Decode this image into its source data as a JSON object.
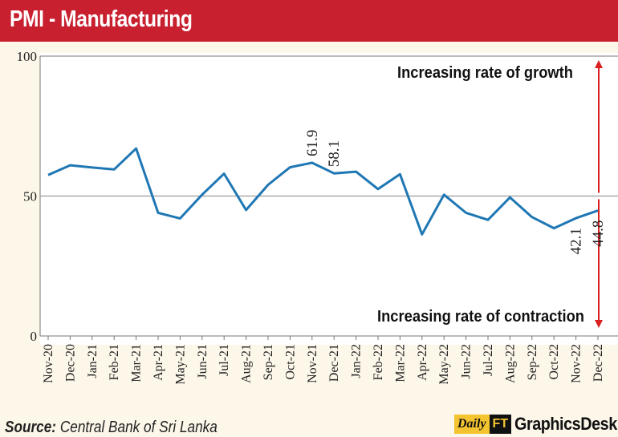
{
  "header": {
    "title": "PMI - Manufacturing"
  },
  "footer": {
    "source_label": "Source:",
    "source_text": "Central Bank of Sri Lanka"
  },
  "brand": {
    "daily": "Daily",
    "ft": "FT",
    "desk": "GraphicsDesk"
  },
  "colors": {
    "header": "#c8202f",
    "line": "#1f77b4",
    "arrow": "#d7201f"
  },
  "chart_data": {
    "type": "line",
    "title": "PMI - Manufacturing",
    "categories": [
      "Nov-20",
      "Dec-20",
      "Jan-21",
      "Feb-21",
      "Mar-21",
      "Apr-21",
      "May-21",
      "Jun-21",
      "Jul-21",
      "Aug-21",
      "Sep-21",
      "Oct-21",
      "Nov-21",
      "Dec-21",
      "Jan-22",
      "Feb-22",
      "Mar-22",
      "Apr-22",
      "May-22",
      "Jun-22",
      "Jul-22",
      "Aug-22",
      "Sep-22",
      "Oct-22",
      "Nov-22",
      "Dec-22"
    ],
    "series": [
      {
        "values": [
          57.5,
          61.0,
          60.2,
          59.5,
          67.0,
          44.0,
          42.0,
          50.5,
          58.0,
          45.0,
          54.0,
          60.3,
          61.9,
          58.1,
          58.7,
          52.5,
          57.8,
          36.3,
          50.5,
          44.0,
          41.5,
          49.5,
          42.5,
          38.5,
          42.1,
          44.8
        ]
      }
    ],
    "ylim": [
      0,
      100
    ],
    "yticks": [
      0,
      50,
      100
    ],
    "reference_line": 50,
    "data_labels": [
      {
        "category": "Nov-21",
        "text": "61.9",
        "position": "above"
      },
      {
        "category": "Dec-21",
        "text": "58.1",
        "position": "above"
      },
      {
        "category": "Nov-22",
        "text": "42.1",
        "position": "below"
      },
      {
        "category": "Dec-22",
        "text": "44.8",
        "position": "below"
      }
    ],
    "annotations": {
      "top": "Increasing rate of growth",
      "bottom": "Increasing rate of contraction"
    },
    "grid": false
  }
}
